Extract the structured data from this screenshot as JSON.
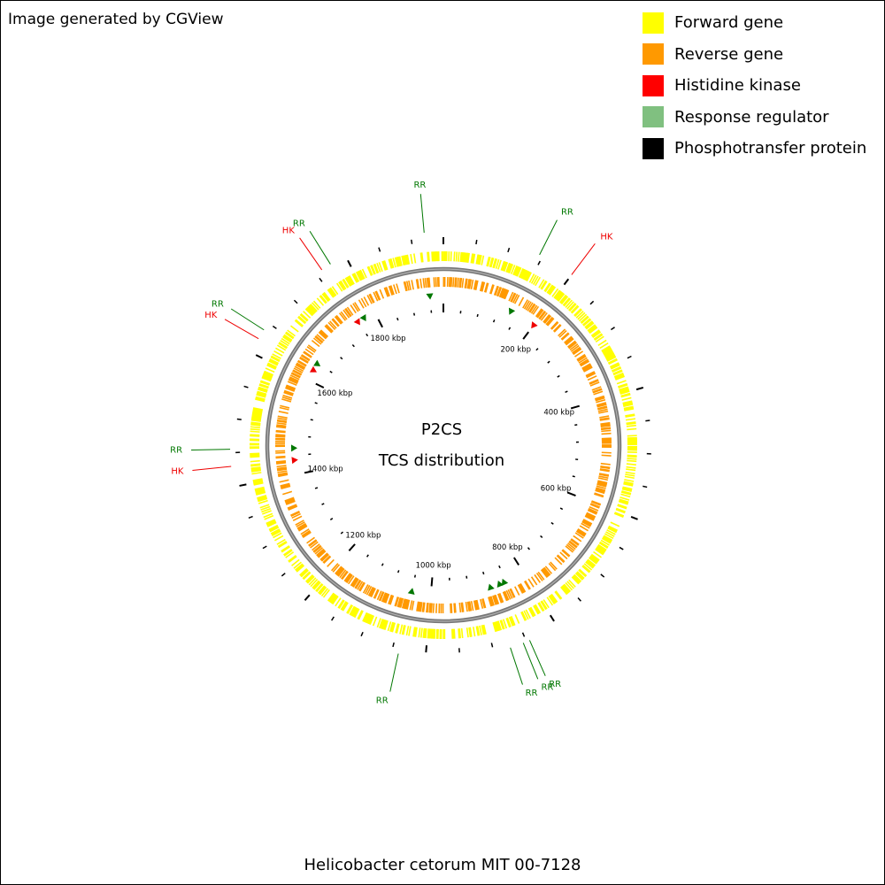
{
  "credit": "Image generated by CGView",
  "legend": [
    {
      "label": "Forward gene",
      "color": "#ffff00"
    },
    {
      "label": "Reverse gene",
      "color": "#ff9900"
    },
    {
      "label": "Histidine kinase",
      "color": "#ff0000"
    },
    {
      "label": "Response regulator",
      "color": "#80c080"
    },
    {
      "label": "Phosphotransfer protein",
      "color": "#000000"
    }
  ],
  "map": {
    "title": "P2CS",
    "subtitle": "TCS distribution",
    "organism": "Helicobacter cetorum MIT 00-7128",
    "genome_length_kbp": 1948,
    "scale_labels": [
      {
        "text": "200 kbp",
        "kbp": 200
      },
      {
        "text": "400 kbp",
        "kbp": 400
      },
      {
        "text": "600 kbp",
        "kbp": 600
      },
      {
        "text": "800 kbp",
        "kbp": 800
      },
      {
        "text": "1000 kbp",
        "kbp": 1000
      },
      {
        "text": "1200 kbp",
        "kbp": 1200
      },
      {
        "text": "1400 kbp",
        "kbp": 1400
      },
      {
        "text": "1600 kbp",
        "kbp": 1600
      },
      {
        "text": "1800 kbp",
        "kbp": 1800
      }
    ],
    "features": [
      {
        "type": "RR",
        "label": "RR",
        "kbp": 145,
        "color": "#007700"
      },
      {
        "type": "HK",
        "label": "HK",
        "kbp": 200,
        "color": "#ee0000"
      },
      {
        "type": "RR",
        "label": "RR",
        "kbp": 875,
        "color": "#007700"
      },
      {
        "type": "RR",
        "label": "RR",
        "kbp": 855,
        "color": "#007700"
      },
      {
        "type": "RR",
        "label": "RR",
        "kbp": 845,
        "color": "#007700"
      },
      {
        "type": "RR",
        "label": "RR",
        "kbp": 1040,
        "color": "#007700"
      },
      {
        "type": "HK",
        "label": "HK",
        "kbp": 1430,
        "color": "#ee0000"
      },
      {
        "type": "RR",
        "label": "RR",
        "kbp": 1455,
        "color": "#007700"
      },
      {
        "type": "HK",
        "label": "HK",
        "kbp": 1623,
        "color": "#ee0000"
      },
      {
        "type": "RR",
        "label": "RR",
        "kbp": 1638,
        "color": "#007700"
      },
      {
        "type": "HK",
        "label": "HK",
        "kbp": 1760,
        "color": "#ee0000"
      },
      {
        "type": "RR",
        "label": "RR",
        "kbp": 1775,
        "color": "#007700"
      },
      {
        "type": "RR",
        "label": "RR",
        "kbp": 1920,
        "color": "#007700"
      }
    ]
  }
}
